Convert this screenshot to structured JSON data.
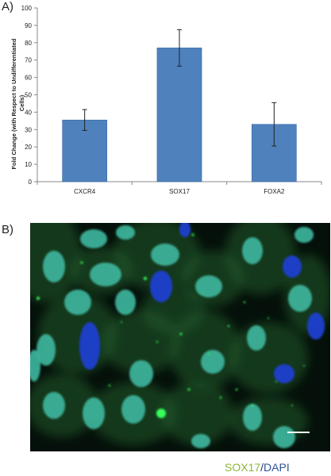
{
  "panel_labels": {
    "a": "A)",
    "b": "B)"
  },
  "chart_data": {
    "type": "bar",
    "categories": [
      "CXCR4",
      "SOX17",
      "FOXA2"
    ],
    "values": [
      35.5,
      77,
      33
    ],
    "error": [
      6,
      10.5,
      12.5
    ],
    "ylabel_lines": [
      "Fold Change (with Respect to Undifferentiated",
      "Cells)"
    ],
    "xlabel": "",
    "ylim": [
      0,
      100
    ],
    "yticks": [
      0,
      10,
      20,
      30,
      40,
      50,
      60,
      70,
      80,
      90,
      100
    ],
    "grid": false,
    "bar_color": "#4f81bd",
    "bar_edge": "#3a6aa8"
  },
  "micrograph": {
    "caption": {
      "green": "SOX17",
      "slash": "/",
      "blue": "DAPI"
    },
    "colors": {
      "background": "#05100a",
      "cytoplasm": "#1f5a2c",
      "nucleus_sox17": "#3fb8a0",
      "nucleus_dapi": "#1d3fd0",
      "puncta": "#39ff5a",
      "scale_bar": "#ffffff"
    }
  }
}
